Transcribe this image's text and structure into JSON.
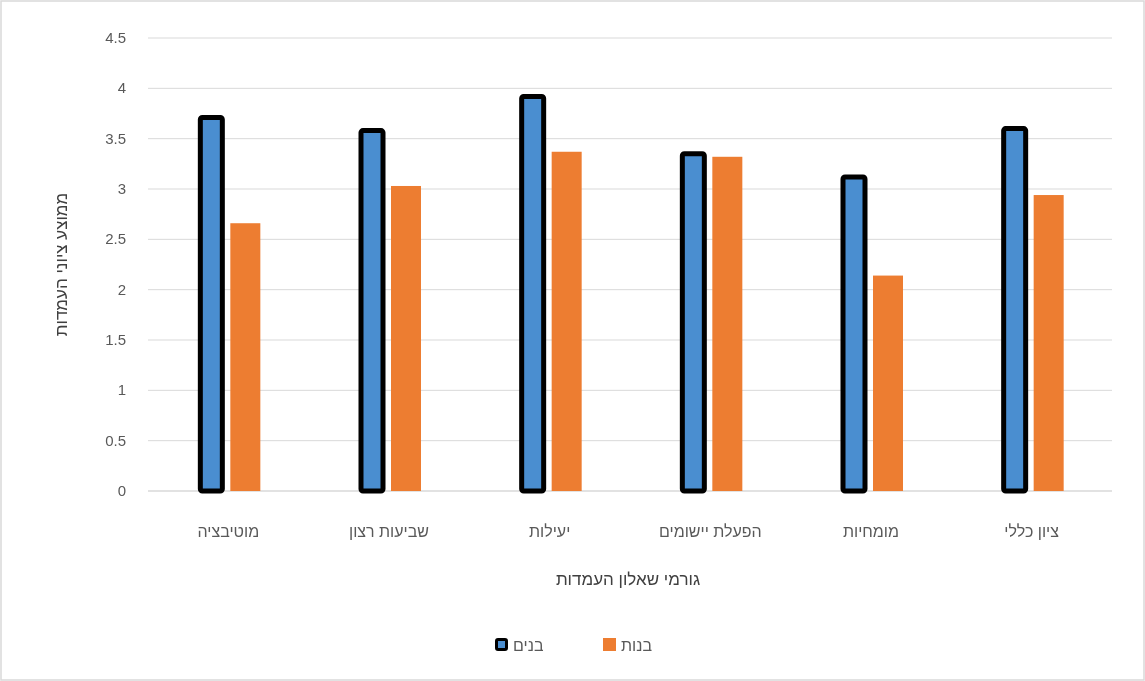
{
  "chart_data": {
    "type": "bar",
    "categories": [
      "מוטיבציה",
      "שביעות רצון",
      "יעילות",
      "הפעלת יישומים",
      "מומחיות",
      "ציון כללי"
    ],
    "series": [
      {
        "name": "בנים",
        "color": "#4a8ed0",
        "values": [
          3.71,
          3.58,
          3.92,
          3.35,
          3.12,
          3.6
        ]
      },
      {
        "name": "בנות",
        "color": "#ed7d31",
        "values": [
          2.66,
          3.03,
          3.37,
          3.32,
          2.14,
          2.94
        ]
      }
    ],
    "xlabel": "גורמי שאלון העמדות",
    "ylabel": "ממוצע ציוני העמדות",
    "ylim": [
      0,
      4.5
    ],
    "yticks": [
      0,
      0.5,
      1,
      1.5,
      2,
      2.5,
      3,
      3.5,
      4,
      4.5
    ],
    "grid": "y",
    "legend": "bottom"
  }
}
